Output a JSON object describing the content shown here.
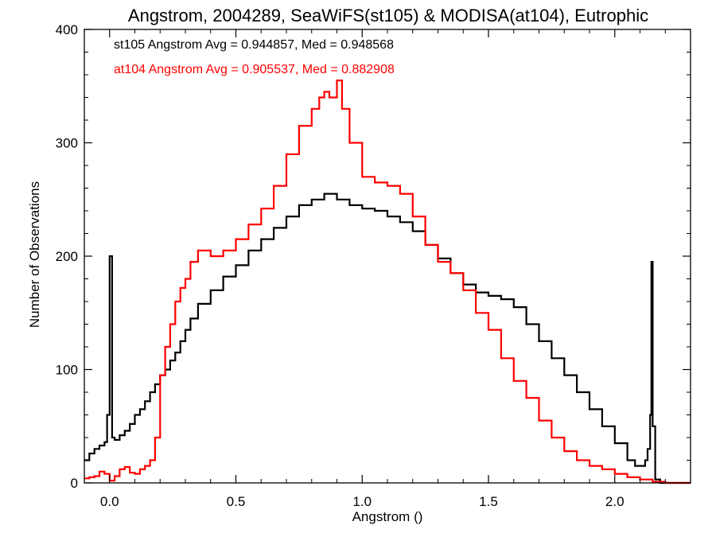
{
  "chart_data": {
    "type": "line",
    "title": "Angstrom, 2004289, SeaWiFS(st105) & MODISA(at104), Eutrophic",
    "xlabel": "Angstrom ()",
    "ylabel": "Number of Observations",
    "xlim": [
      -0.1,
      2.3
    ],
    "ylim": [
      0,
      400
    ],
    "x_ticks": [
      0.0,
      0.5,
      1.0,
      1.5,
      2.0
    ],
    "x_tick_labels": [
      "0.0",
      "0.5",
      "1.0",
      "1.5",
      "2.0"
    ],
    "y_ticks": [
      0,
      100,
      200,
      300,
      400
    ],
    "y_tick_labels": [
      "0",
      "100",
      "200",
      "300",
      "400"
    ],
    "grid": false,
    "step": true,
    "annotations": [
      {
        "text": "st105 Angstrom Avg = 0.944857, Med = 0.948568",
        "color": "#000000"
      },
      {
        "text": "at104 Angstrom Avg = 0.905537, Med = 0.882908",
        "color": "#ff0000"
      }
    ],
    "series": [
      {
        "color": "#000000",
        "x": [
          -0.1,
          -0.08,
          -0.06,
          -0.04,
          -0.02,
          -0.01,
          0.0,
          0.01,
          0.02,
          0.04,
          0.06,
          0.08,
          0.1,
          0.12,
          0.14,
          0.16,
          0.18,
          0.2,
          0.22,
          0.24,
          0.26,
          0.28,
          0.3,
          0.32,
          0.35,
          0.4,
          0.45,
          0.5,
          0.55,
          0.6,
          0.65,
          0.7,
          0.75,
          0.8,
          0.85,
          0.9,
          0.95,
          1.0,
          1.05,
          1.1,
          1.15,
          1.2,
          1.25,
          1.3,
          1.35,
          1.4,
          1.45,
          1.5,
          1.55,
          1.6,
          1.65,
          1.7,
          1.75,
          1.8,
          1.85,
          1.9,
          1.95,
          2.0,
          2.05,
          2.08,
          2.1,
          2.12,
          2.13,
          2.14,
          2.145,
          2.15,
          2.16,
          2.18,
          2.2,
          2.25,
          2.3
        ],
        "y": [
          20,
          26,
          30,
          33,
          36,
          60,
          200,
          40,
          38,
          42,
          46,
          52,
          60,
          65,
          72,
          80,
          87,
          95,
          100,
          108,
          115,
          125,
          135,
          145,
          158,
          170,
          182,
          192,
          205,
          215,
          225,
          235,
          245,
          250,
          255,
          250,
          245,
          242,
          240,
          235,
          230,
          222,
          210,
          198,
          185,
          175,
          168,
          165,
          162,
          155,
          140,
          125,
          110,
          95,
          80,
          65,
          50,
          35,
          20,
          15,
          15,
          20,
          30,
          60,
          195,
          50,
          3,
          0,
          0,
          0,
          0
        ]
      },
      {
        "color": "#ff0000",
        "x": [
          -0.1,
          -0.08,
          -0.06,
          -0.04,
          -0.02,
          0.0,
          0.02,
          0.04,
          0.06,
          0.08,
          0.1,
          0.12,
          0.14,
          0.16,
          0.18,
          0.2,
          0.22,
          0.24,
          0.26,
          0.28,
          0.3,
          0.32,
          0.35,
          0.4,
          0.45,
          0.5,
          0.55,
          0.6,
          0.65,
          0.7,
          0.75,
          0.8,
          0.83,
          0.85,
          0.87,
          0.9,
          0.92,
          0.95,
          1.0,
          1.05,
          1.1,
          1.15,
          1.2,
          1.25,
          1.3,
          1.35,
          1.4,
          1.45,
          1.5,
          1.55,
          1.6,
          1.65,
          1.7,
          1.75,
          1.8,
          1.85,
          1.9,
          1.95,
          2.0,
          2.05,
          2.1,
          2.15,
          2.2,
          2.25,
          2.3
        ],
        "y": [
          4,
          5,
          6,
          10,
          8,
          2,
          6,
          12,
          14,
          9,
          8,
          12,
          15,
          20,
          40,
          95,
          120,
          140,
          160,
          172,
          180,
          195,
          205,
          200,
          205,
          215,
          228,
          242,
          262,
          290,
          315,
          330,
          340,
          345,
          340,
          355,
          330,
          300,
          270,
          265,
          262,
          255,
          235,
          210,
          195,
          185,
          170,
          150,
          135,
          110,
          90,
          75,
          55,
          40,
          28,
          20,
          15,
          12,
          8,
          5,
          3,
          1,
          0,
          0,
          0
        ]
      }
    ]
  }
}
